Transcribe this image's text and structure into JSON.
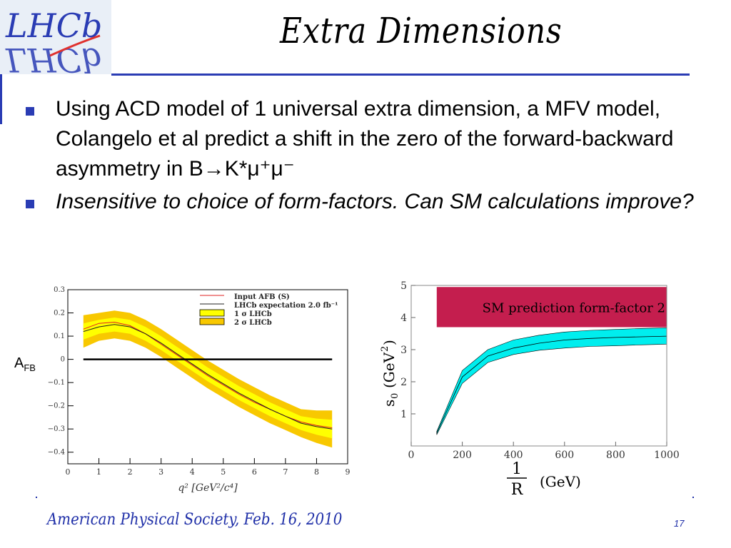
{
  "logo": {
    "text": "LHCb",
    "colors": {
      "text": "#2a3cb4",
      "accent": "#e0312e"
    }
  },
  "slide": {
    "title": "Extra Dimensions",
    "bullets": [
      "Using ACD model of 1 universal extra dimension, a MFV model, Colangelo et al predict a shift in the zero of the forward-backward asymmetry in B→K*μ⁺μ⁻",
      "Insensitive to choice of form-factors. Can SM calculations improve?"
    ],
    "side_label": {
      "base": "A",
      "sub": "FB"
    },
    "footer": "American Physical Society, Feb. 16, 2010",
    "page_number": "17"
  },
  "chart_data": [
    {
      "type": "line",
      "xlabel": "q²  [GeV²/c⁴]",
      "ylabel": "",
      "xlim": [
        0,
        9
      ],
      "ylim": [
        -0.45,
        0.3
      ],
      "xticks": [
        "0",
        "1",
        "2",
        "3",
        "4",
        "5",
        "6",
        "7",
        "8",
        "9"
      ],
      "yticks": [
        "0.3",
        "0.2",
        "0.1",
        "0",
        "−0.1",
        "−0.2",
        "−0.3",
        "−0.4"
      ],
      "legend": [
        "Input AFB (S)",
        "LHCb expectation 2.0 fb⁻¹",
        "1 σ LHCb",
        "2 σ LHCb"
      ],
      "legend_position": "top-right",
      "colors": {
        "band1": "#ffff00",
        "band2": "#f8c800",
        "input": "#e02020",
        "expect": "#202020"
      },
      "x": [
        0.5,
        1.0,
        1.5,
        2.0,
        2.5,
        3.0,
        3.5,
        4.0,
        4.5,
        5.0,
        5.5,
        6.0,
        6.5,
        7.0,
        7.5,
        8.0,
        8.5
      ],
      "series": [
        {
          "name": "Input AFB (S)",
          "values": [
            0.13,
            0.155,
            0.16,
            0.145,
            0.11,
            0.065,
            0.02,
            -0.025,
            -0.07,
            -0.11,
            -0.15,
            -0.185,
            -0.215,
            -0.245,
            -0.27,
            -0.285,
            -0.295
          ]
        },
        {
          "name": "LHCb expectation 2.0 fb⁻¹",
          "values": [
            0.12,
            0.14,
            0.15,
            0.14,
            0.11,
            0.07,
            0.025,
            -0.02,
            -0.065,
            -0.105,
            -0.145,
            -0.18,
            -0.215,
            -0.245,
            -0.275,
            -0.29,
            -0.3
          ]
        },
        {
          "name": "1 σ LHCb",
          "lower": [
            0.085,
            0.11,
            0.12,
            0.11,
            0.08,
            0.04,
            -0.005,
            -0.05,
            -0.095,
            -0.135,
            -0.175,
            -0.21,
            -0.245,
            -0.275,
            -0.305,
            -0.325,
            -0.34
          ],
          "upper": [
            0.155,
            0.17,
            0.18,
            0.17,
            0.14,
            0.1,
            0.055,
            0.01,
            -0.035,
            -0.075,
            -0.115,
            -0.15,
            -0.185,
            -0.215,
            -0.245,
            -0.255,
            -0.26
          ]
        },
        {
          "name": "2 σ LHCb",
          "lower": [
            0.05,
            0.08,
            0.09,
            0.08,
            0.05,
            0.01,
            -0.035,
            -0.08,
            -0.125,
            -0.165,
            -0.205,
            -0.24,
            -0.275,
            -0.305,
            -0.335,
            -0.36,
            -0.38
          ],
          "upper": [
            0.19,
            0.2,
            0.21,
            0.2,
            0.17,
            0.13,
            0.085,
            0.04,
            -0.005,
            -0.045,
            -0.085,
            -0.12,
            -0.155,
            -0.185,
            -0.215,
            -0.22,
            -0.22
          ]
        }
      ],
      "reference_line": 0
    },
    {
      "type": "area",
      "ylabel": "s₀ (GeV²)",
      "xlabel": "1/R (GeV)",
      "xlabel_parts": {
        "num": "1",
        "den": "R",
        "unit": "(GeV)"
      },
      "ylabel_parts": {
        "sym": "s",
        "sub": "0",
        "unit": "(GeV",
        "sup": "2",
        "close": ")"
      },
      "xlim": [
        0,
        1000
      ],
      "ylim": [
        0,
        5
      ],
      "xticks": [
        "0",
        "200",
        "400",
        "600",
        "800",
        "1000"
      ],
      "yticks": [
        "1",
        "2",
        "3",
        "4",
        "5"
      ],
      "annotation": "SM prediction form-factor 2",
      "annotation_band": [
        3.7,
        4.95
      ],
      "colors": {
        "band": "#00eeee",
        "annotation": "#c41e4e"
      },
      "x": [
        100,
        200,
        300,
        400,
        500,
        600,
        700,
        800,
        900,
        1000
      ],
      "series": [
        {
          "name": "",
          "values": [
            0.4,
            2.15,
            2.8,
            3.05,
            3.2,
            3.3,
            3.35,
            3.38,
            3.4,
            3.42
          ],
          "lower": [
            0.35,
            1.95,
            2.6,
            2.85,
            2.98,
            3.05,
            3.1,
            3.12,
            3.15,
            3.17
          ],
          "upper": [
            0.45,
            2.35,
            3.0,
            3.3,
            3.45,
            3.55,
            3.6,
            3.63,
            3.66,
            3.68
          ]
        }
      ]
    }
  ]
}
